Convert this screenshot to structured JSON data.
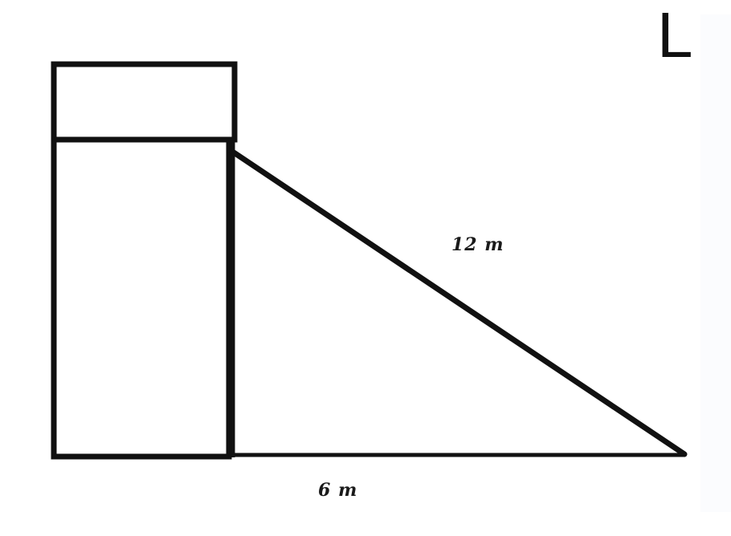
{
  "corner_letter": "L",
  "hypotenuse_label": "12 m",
  "base_label": "6 m"
}
